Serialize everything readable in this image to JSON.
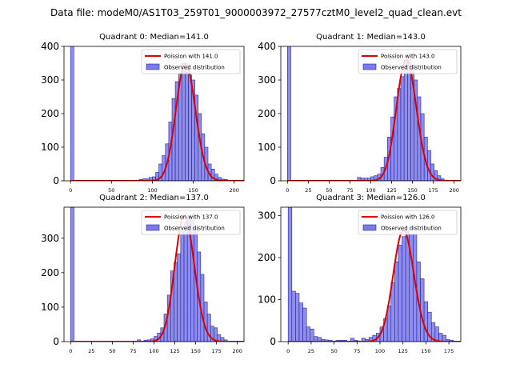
{
  "figure_title": "Data file: modeM0/AS1T03_259T01_9000003972_27577cztM0_level2_quad_clean.evt",
  "colors": {
    "hist_fill": "#7b7be8",
    "hist_edge": "#2323a8",
    "poisson": "#dd0000"
  },
  "chart_data": [
    {
      "type": "bar",
      "title": "Quadrant 0: Median=141.0",
      "median": 141.0,
      "poisson_label": "Poission with 141.0",
      "observed_label": "Observed distribution",
      "xlim": [
        -8,
        212
      ],
      "ylim": [
        0,
        400
      ],
      "xticks": [
        0,
        50,
        100,
        150,
        200
      ],
      "yticks": [
        0,
        100,
        200,
        300,
        400
      ],
      "bin_width": 4,
      "bins": [
        [
          0,
          400
        ],
        [
          80,
          2
        ],
        [
          84,
          4
        ],
        [
          88,
          6
        ],
        [
          92,
          6
        ],
        [
          96,
          10
        ],
        [
          100,
          12
        ],
        [
          104,
          25
        ],
        [
          108,
          50
        ],
        [
          112,
          75
        ],
        [
          116,
          110
        ],
        [
          120,
          175
        ],
        [
          124,
          245
        ],
        [
          128,
          295
        ],
        [
          132,
          320
        ],
        [
          136,
          350
        ],
        [
          140,
          345
        ],
        [
          144,
          315
        ],
        [
          148,
          300
        ],
        [
          152,
          255
        ],
        [
          156,
          200
        ],
        [
          160,
          140
        ],
        [
          164,
          100
        ],
        [
          168,
          50
        ],
        [
          172,
          35
        ],
        [
          176,
          20
        ],
        [
          180,
          10
        ],
        [
          184,
          5
        ],
        [
          188,
          4
        ]
      ]
    },
    {
      "type": "bar",
      "title": "Quadrant 1: Median=143.0",
      "median": 143.0,
      "poisson_label": "Poission with 143.0",
      "observed_label": "Observed distribution",
      "xlim": [
        -8,
        208
      ],
      "ylim": [
        0,
        400
      ],
      "xticks": [
        0,
        25,
        50,
        75,
        100,
        125,
        150,
        175,
        200
      ],
      "yticks": [
        0,
        100,
        200,
        300,
        400
      ],
      "bin_width": 4,
      "bins": [
        [
          0,
          400
        ],
        [
          84,
          10
        ],
        [
          88,
          8
        ],
        [
          92,
          8
        ],
        [
          96,
          8
        ],
        [
          100,
          12
        ],
        [
          104,
          15
        ],
        [
          108,
          20
        ],
        [
          112,
          40
        ],
        [
          116,
          70
        ],
        [
          120,
          130
        ],
        [
          124,
          190
        ],
        [
          128,
          250
        ],
        [
          132,
          275
        ],
        [
          136,
          310
        ],
        [
          140,
          355
        ],
        [
          144,
          360
        ],
        [
          148,
          345
        ],
        [
          152,
          300
        ],
        [
          156,
          250
        ],
        [
          160,
          200
        ],
        [
          164,
          130
        ],
        [
          168,
          90
        ],
        [
          172,
          50
        ],
        [
          176,
          30
        ],
        [
          180,
          15
        ],
        [
          184,
          6
        ]
      ]
    },
    {
      "type": "bar",
      "title": "Quadrant 2: Median=137.0",
      "median": 137.0,
      "poisson_label": "Poission with 137.0",
      "observed_label": "Observed distribution",
      "xlim": [
        -8,
        208
      ],
      "ylim": [
        0,
        390
      ],
      "xticks": [
        0,
        25,
        50,
        75,
        100,
        125,
        150,
        175,
        200
      ],
      "yticks": [
        0,
        100,
        200,
        300
      ],
      "bin_width": 4,
      "bins": [
        [
          0,
          390
        ],
        [
          80,
          5
        ],
        [
          88,
          4
        ],
        [
          92,
          5
        ],
        [
          96,
          8
        ],
        [
          100,
          15
        ],
        [
          104,
          25
        ],
        [
          108,
          40
        ],
        [
          112,
          80
        ],
        [
          116,
          135
        ],
        [
          120,
          205
        ],
        [
          124,
          230
        ],
        [
          128,
          255
        ],
        [
          132,
          320
        ],
        [
          136,
          345
        ],
        [
          140,
          365
        ],
        [
          144,
          355
        ],
        [
          148,
          330
        ],
        [
          152,
          260
        ],
        [
          156,
          195
        ],
        [
          160,
          115
        ],
        [
          164,
          80
        ],
        [
          168,
          45
        ],
        [
          172,
          40
        ],
        [
          176,
          20
        ],
        [
          180,
          12
        ],
        [
          184,
          5
        ]
      ]
    },
    {
      "type": "bar",
      "title": "Quadrant 3: Median=126.0",
      "median": 126.0,
      "poisson_label": "Poission with 126.0",
      "observed_label": "Observed distribution",
      "xlim": [
        -8,
        188
      ],
      "ylim": [
        0,
        320
      ],
      "xticks": [
        0,
        25,
        50,
        75,
        100,
        125,
        150,
        175
      ],
      "yticks": [
        0,
        100,
        200,
        300
      ],
      "bin_width": 4,
      "bins": [
        [
          0,
          320
        ],
        [
          4,
          120
        ],
        [
          8,
          115
        ],
        [
          12,
          92
        ],
        [
          16,
          80
        ],
        [
          20,
          35
        ],
        [
          24,
          30
        ],
        [
          28,
          12
        ],
        [
          32,
          10
        ],
        [
          36,
          5
        ],
        [
          40,
          4
        ],
        [
          44,
          3
        ],
        [
          52,
          3
        ],
        [
          56,
          3
        ],
        [
          60,
          3
        ],
        [
          68,
          8
        ],
        [
          72,
          3
        ],
        [
          80,
          8
        ],
        [
          84,
          5
        ],
        [
          88,
          10
        ],
        [
          92,
          15
        ],
        [
          96,
          20
        ],
        [
          100,
          35
        ],
        [
          104,
          55
        ],
        [
          108,
          85
        ],
        [
          112,
          140
        ],
        [
          116,
          190
        ],
        [
          120,
          230
        ],
        [
          124,
          250
        ],
        [
          128,
          265
        ],
        [
          132,
          255
        ],
        [
          136,
          255
        ],
        [
          140,
          190
        ],
        [
          144,
          150
        ],
        [
          148,
          95
        ],
        [
          152,
          70
        ],
        [
          156,
          45
        ],
        [
          160,
          35
        ],
        [
          164,
          20
        ],
        [
          168,
          15
        ],
        [
          172,
          5
        ],
        [
          176,
          3
        ]
      ]
    }
  ]
}
